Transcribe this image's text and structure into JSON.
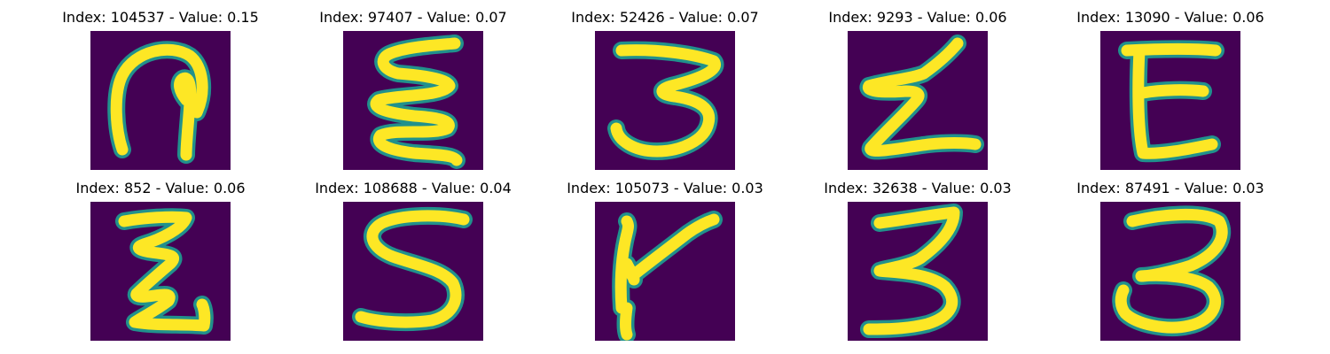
{
  "colors": {
    "background": "#440154",
    "stroke_edge": "#21918c",
    "stroke_core": "#fde725"
  },
  "panels": [
    {
      "title": "Index: 104537 - Value: 0.15",
      "glyph": "curl"
    },
    {
      "title": "Index: 97407 - Value: 0.07",
      "glyph": "sigma-zigzag"
    },
    {
      "title": "Index: 52426 - Value: 0.07",
      "glyph": "three"
    },
    {
      "title": "Index: 9293 - Value: 0.06",
      "glyph": "z-zigzag"
    },
    {
      "title": "Index: 13090 - Value: 0.06",
      "glyph": "e"
    },
    {
      "title": "Index: 852 - Value: 0.06",
      "glyph": "z-zigzag-narrow"
    },
    {
      "title": "Index: 108688 - Value: 0.04",
      "glyph": "s"
    },
    {
      "title": "Index: 105073 - Value: 0.03",
      "glyph": "y"
    },
    {
      "title": "Index: 32638 - Value: 0.03",
      "glyph": "three-narrow"
    },
    {
      "title": "Index: 87491 - Value: 0.03",
      "glyph": "three-round"
    }
  ]
}
